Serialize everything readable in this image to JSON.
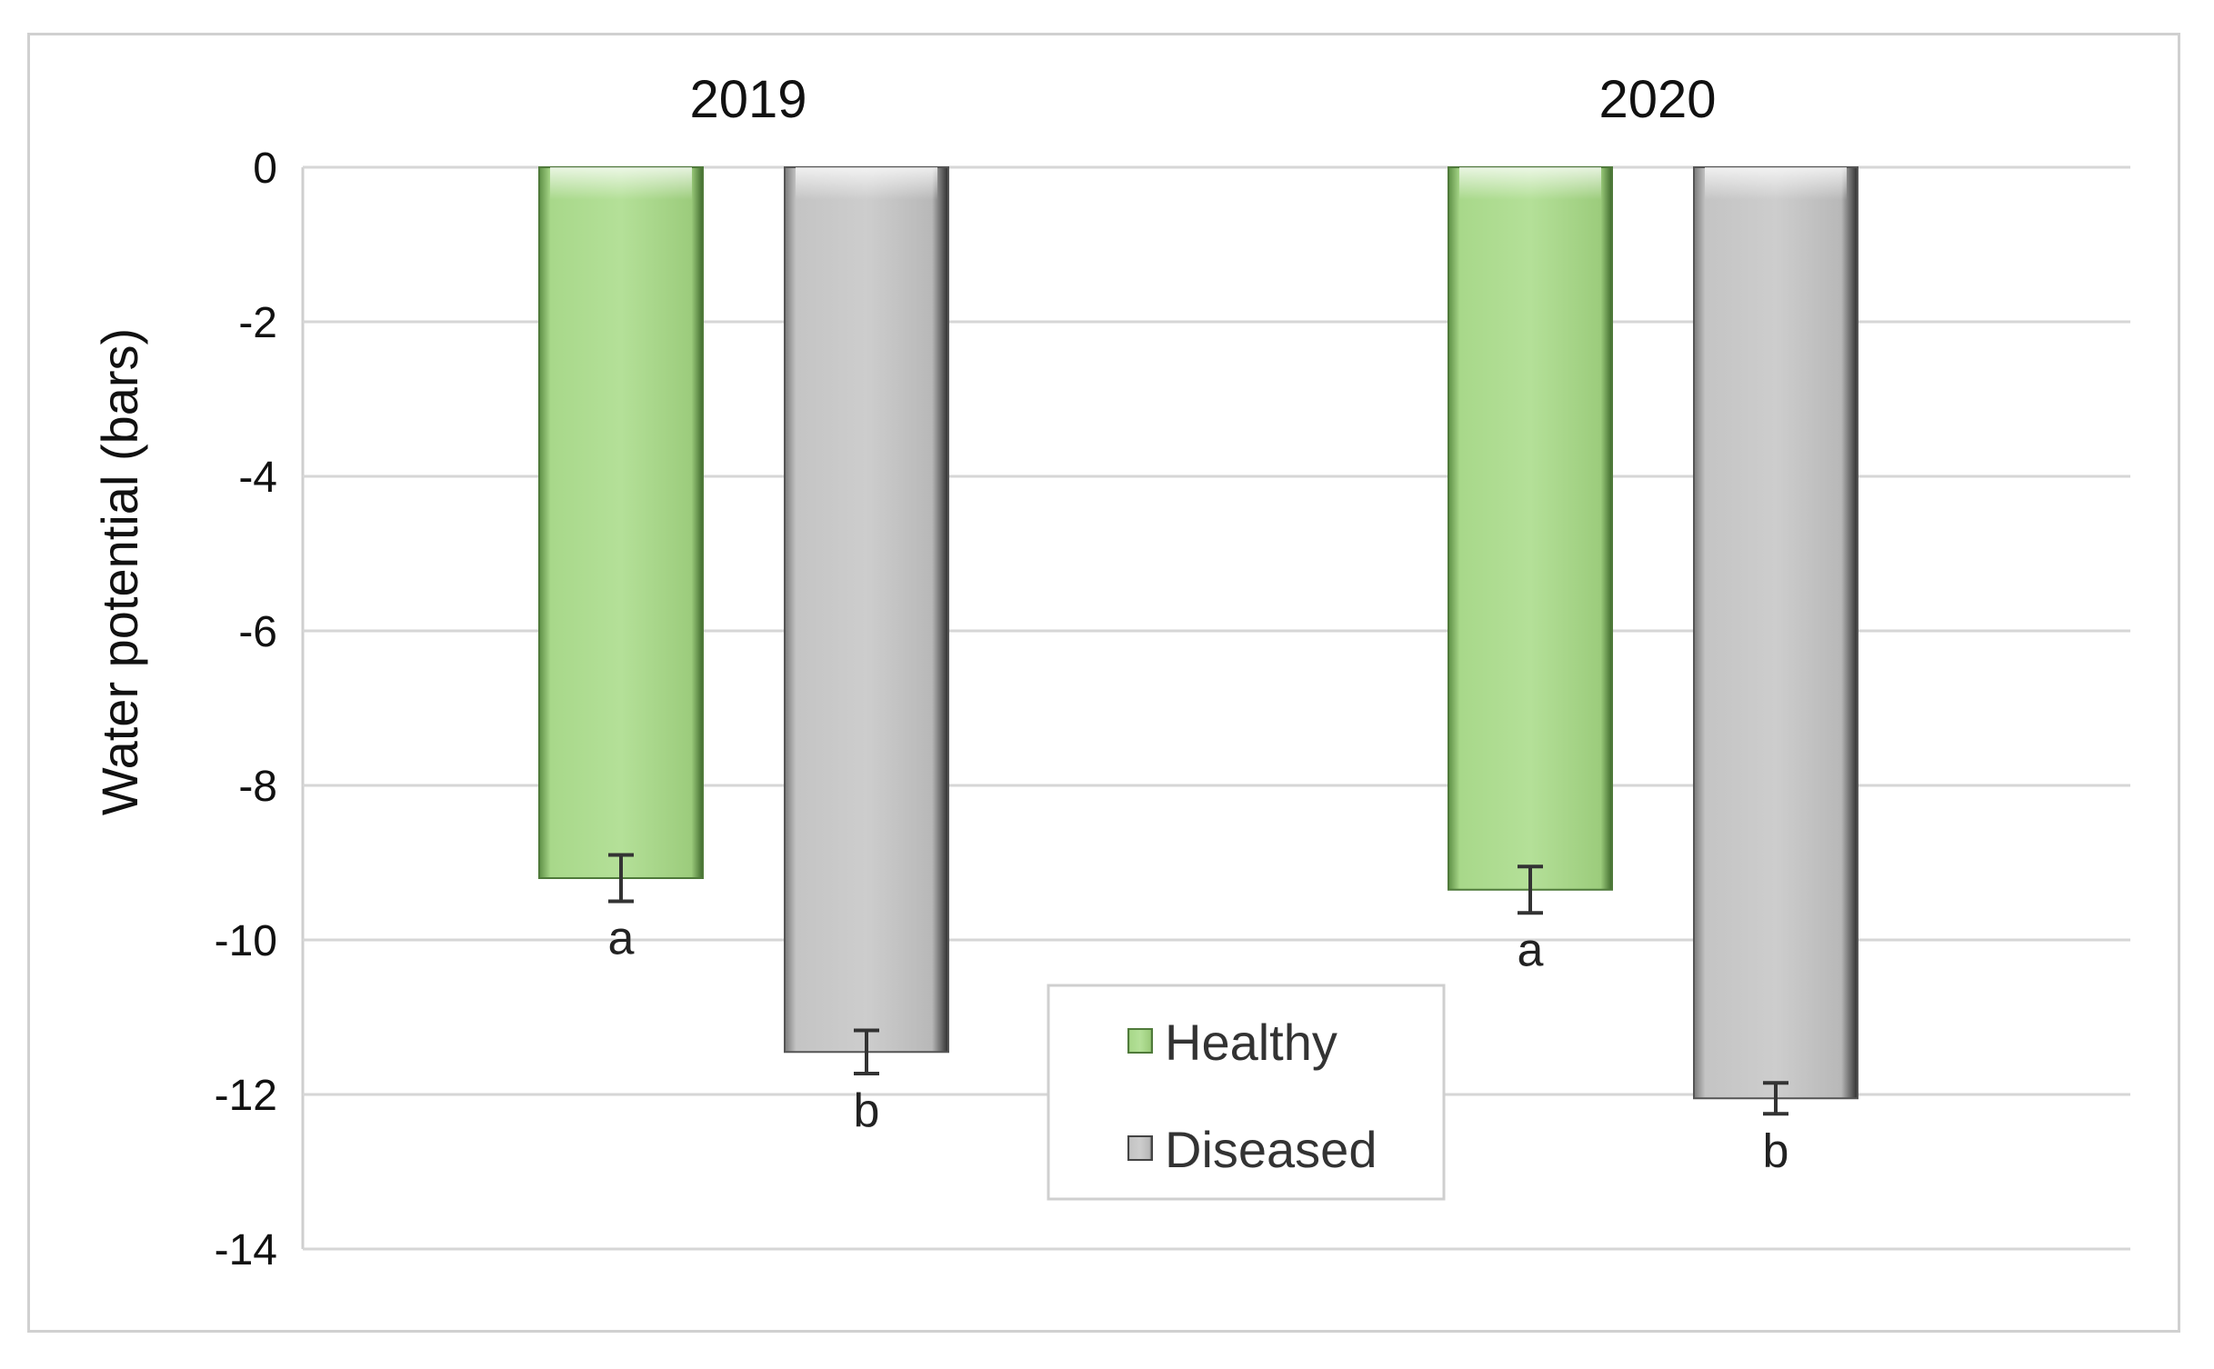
{
  "chart_data": {
    "type": "bar",
    "title": "",
    "xlabel": "",
    "ylabel": "Water potential (bars)",
    "categories": [
      "2019",
      "2020"
    ],
    "category_position": "top",
    "ylim": [
      -14,
      0
    ],
    "yticks": [
      0,
      -2,
      -4,
      -6,
      -8,
      -10,
      -12,
      -14
    ],
    "grid": true,
    "legend_position": "bottom-center",
    "series": [
      {
        "name": "Healthy",
        "color": "#a8d88a",
        "values": [
          -9.2,
          -9.35
        ],
        "errors": [
          0.3,
          0.3
        ],
        "letters": [
          "a",
          "a"
        ]
      },
      {
        "name": "Diseased",
        "color": "#c8c8c8",
        "values": [
          -11.45,
          -12.05
        ],
        "errors": [
          0.28,
          0.2
        ],
        "letters": [
          "b",
          "b"
        ]
      }
    ]
  }
}
